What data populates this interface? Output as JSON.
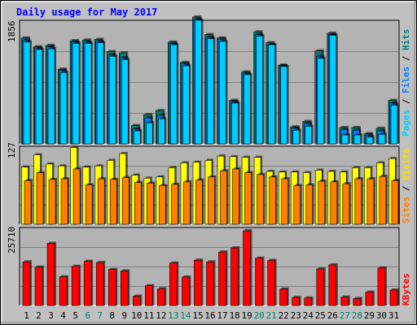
{
  "chart_data": [
    {
      "type": "bar",
      "title": "Daily usage for May 2017",
      "panel": "top",
      "axis_label": "1856",
      "legend": [
        "Pages",
        "Files",
        "Hits"
      ],
      "legend_colors": [
        "#00ccff",
        "#00ccff",
        "#008080"
      ],
      "ylim": [
        0,
        1856
      ],
      "categories": [
        "1",
        "2",
        "3",
        "4",
        "5",
        "6",
        "7",
        "8",
        "9",
        "10",
        "11",
        "12",
        "13",
        "14",
        "15",
        "16",
        "17",
        "18",
        "19",
        "20",
        "21",
        "22",
        "23",
        "24",
        "25",
        "26",
        "27",
        "28",
        "29",
        "30",
        "31"
      ],
      "series": [
        {
          "name": "Hits",
          "values": [
            1560,
            1430,
            1450,
            1100,
            1520,
            1530,
            1540,
            1360,
            1340,
            270,
            430,
            490,
            1500,
            1200,
            1870,
            1610,
            1560,
            640,
            1060,
            1650,
            1490,
            1160,
            250,
            330,
            1370,
            1630,
            240,
            240,
            150,
            230,
            640
          ]
        },
        {
          "name": "Files",
          "values": [
            1530,
            1410,
            1430,
            1080,
            1500,
            1500,
            1510,
            1310,
            1270,
            220,
            380,
            420,
            1480,
            1180,
            1840,
            1570,
            1540,
            620,
            1040,
            1610,
            1460,
            1150,
            230,
            300,
            1290,
            1610,
            210,
            200,
            130,
            190,
            600
          ]
        },
        {
          "name": "Pages",
          "values": [
            1500,
            1390,
            1400,
            1050,
            1480,
            1480,
            1490,
            1290,
            1240,
            190,
            310,
            370,
            1460,
            1150,
            1820,
            1550,
            1510,
            600,
            1020,
            1590,
            1460,
            1140,
            200,
            260,
            1260,
            1600,
            130,
            130,
            100,
            140,
            570
          ]
        }
      ]
    },
    {
      "type": "bar",
      "panel": "middle",
      "axis_label": "127",
      "legend": [
        "Sites",
        "Visits"
      ],
      "legend_colors": [
        "#ff8000",
        "#ffff00"
      ],
      "ylim": [
        0,
        127
      ],
      "categories": [
        "1",
        "2",
        "3",
        "4",
        "5",
        "6",
        "7",
        "8",
        "9",
        "10",
        "11",
        "12",
        "13",
        "14",
        "15",
        "16",
        "17",
        "18",
        "19",
        "20",
        "21",
        "22",
        "23",
        "24",
        "25",
        "26",
        "27",
        "28",
        "29",
        "30",
        "31"
      ],
      "series": [
        {
          "name": "Visits",
          "values": [
            93,
            113,
            98,
            95,
            125,
            93,
            95,
            104,
            115,
            80,
            75,
            77,
            92,
            100,
            101,
            104,
            111,
            110,
            109,
            109,
            86,
            85,
            85,
            84,
            88,
            86,
            85,
            92,
            92,
            100,
            107
          ]
        },
        {
          "name": "Sites",
          "values": [
            71,
            84,
            73,
            74,
            90,
            64,
            74,
            73,
            76,
            68,
            67,
            63,
            65,
            69,
            72,
            77,
            87,
            90,
            84,
            81,
            77,
            74,
            63,
            64,
            70,
            69,
            66,
            74,
            74,
            78,
            71
          ]
        }
      ]
    },
    {
      "type": "bar",
      "panel": "bottom",
      "axis_label": "25710",
      "legend": [
        "KBytes"
      ],
      "legend_colors": [
        "#ff0000"
      ],
      "ylim": [
        0,
        25710
      ],
      "categories": [
        "1",
        "2",
        "3",
        "4",
        "5",
        "6",
        "7",
        "8",
        "9",
        "10",
        "11",
        "12",
        "13",
        "14",
        "15",
        "16",
        "17",
        "18",
        "19",
        "20",
        "21",
        "22",
        "23",
        "24",
        "25",
        "26",
        "27",
        "28",
        "29",
        "30",
        "31"
      ],
      "series": [
        {
          "name": "KBytes",
          "values": [
            15000,
            13200,
            21400,
            9900,
            13500,
            15200,
            14800,
            12400,
            11900,
            3200,
            6800,
            5800,
            14600,
            9800,
            15600,
            15000,
            18400,
            19800,
            25710,
            16300,
            15500,
            5700,
            2800,
            2600,
            12600,
            14000,
            2900,
            2400,
            4600,
            12900,
            5300
          ]
        }
      ]
    }
  ],
  "x_labels": [
    "1",
    "2",
    "3",
    "4",
    "5",
    "6",
    "7",
    "8",
    "9",
    "10",
    "11",
    "12",
    "13",
    "14",
    "15",
    "16",
    "17",
    "18",
    "19",
    "20",
    "21",
    "22",
    "23",
    "24",
    "25",
    "26",
    "27",
    "28",
    "29",
    "30",
    "31"
  ],
  "weekend_days": [
    6,
    7,
    13,
    14,
    20,
    21,
    27,
    28
  ],
  "colors": {
    "background": "#c0c0c0",
    "plot": "#b3b3b3",
    "title": "#0000ff",
    "axis_label": "#000000",
    "weekday_label": "#000000",
    "weekend_label": "#008060",
    "gridline": "#808080",
    "hits": "#00806c",
    "files": "#0080ff",
    "pages": "#00ccff",
    "visits": "#ffff00",
    "sites": "#ff8000",
    "kbytes": "#ff0000"
  }
}
